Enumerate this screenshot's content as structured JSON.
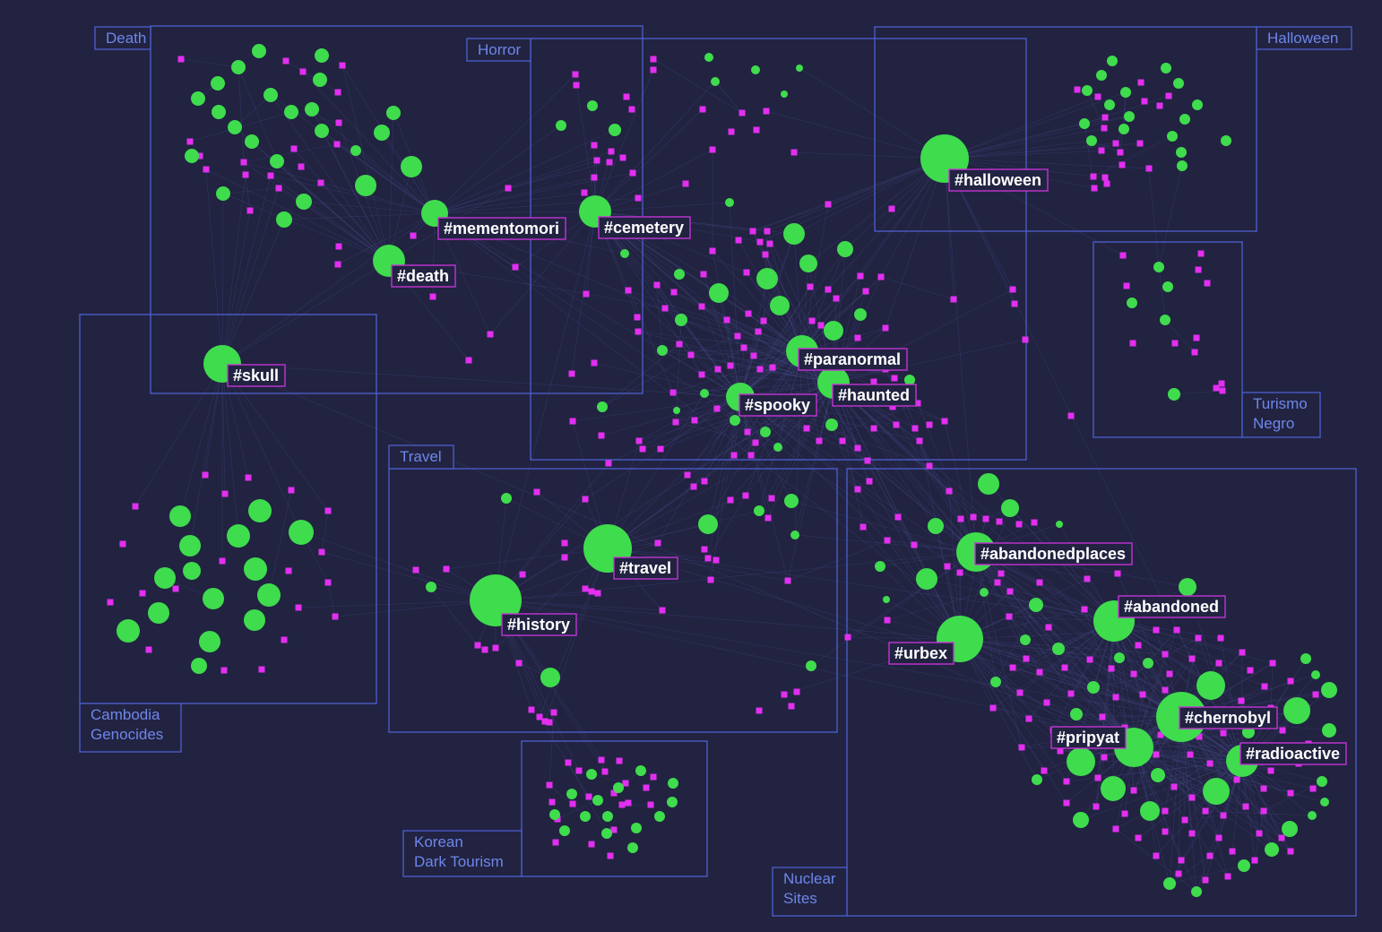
{
  "clusters": [
    {
      "id": "death",
      "label": "Death"
    },
    {
      "id": "horror",
      "label": "Horror"
    },
    {
      "id": "halloween",
      "label": "Halloween"
    },
    {
      "id": "turismo",
      "label": "Turismo\nNegro"
    },
    {
      "id": "cambodia",
      "label": "Cambodia\nGenocides"
    },
    {
      "id": "travel",
      "label": "Travel"
    },
    {
      "id": "korean",
      "label": "Korean\nDark Tourism"
    },
    {
      "id": "nuclear",
      "label": "Nuclear\nSites"
    }
  ],
  "hashtags": [
    "#mementomori",
    "#cemetery",
    "#death",
    "#halloween",
    "#skull",
    "#paranormal",
    "#haunted",
    "#spooky",
    "#travel",
    "#history",
    "#abandonedplaces",
    "#abandoned",
    "#urbex",
    "#chernobyl",
    "#pripyat",
    "#radioactive"
  ],
  "colors": {
    "background": "#212341",
    "cluster_border": "#4d5fcf",
    "cluster_label": "#6f86ea",
    "hashtag_node": "#3fdc4d",
    "post_node": "#e22ff0",
    "hashtag_label_border": "#c433d4",
    "edge": "#4a4f8c"
  }
}
